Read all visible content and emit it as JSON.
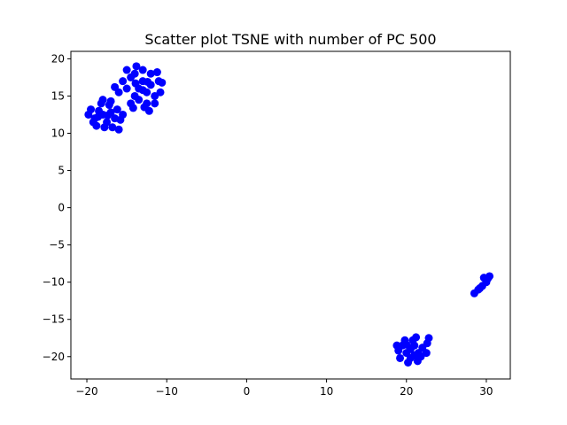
{
  "chart_data": {
    "type": "scatter",
    "title": "Scatter plot TSNE with  number of PC 500",
    "xlabel": "",
    "ylabel": "",
    "xlim": [
      -22,
      33
    ],
    "ylim": [
      -23,
      21
    ],
    "xticks": [
      -20,
      -10,
      0,
      10,
      20,
      30
    ],
    "yticks": [
      -20,
      -15,
      -10,
      -5,
      0,
      5,
      10,
      15,
      20
    ],
    "xtick_labels": [
      "−20",
      "−10",
      "0",
      "10",
      "20",
      "30"
    ],
    "ytick_labels": [
      "−20",
      "−15",
      "−10",
      "−5",
      "0",
      "5",
      "10",
      "15",
      "20"
    ],
    "grid": false,
    "marker_color": "#0000ff",
    "points": [
      {
        "x": -13.5,
        "y": 16.0
      },
      {
        "x": -13.0,
        "y": 17.0
      },
      {
        "x": -12.5,
        "y": 15.5
      },
      {
        "x": -14.0,
        "y": 15.0
      },
      {
        "x": -12.0,
        "y": 16.5
      },
      {
        "x": -14.5,
        "y": 17.5
      },
      {
        "x": -13.0,
        "y": 18.5
      },
      {
        "x": -11.5,
        "y": 15.0
      },
      {
        "x": -12.5,
        "y": 14.0
      },
      {
        "x": -15.0,
        "y": 16.0
      },
      {
        "x": -11.0,
        "y": 17.0
      },
      {
        "x": -14.0,
        "y": 18.0
      },
      {
        "x": -12.0,
        "y": 18.0
      },
      {
        "x": -13.5,
        "y": 14.5
      },
      {
        "x": -15.5,
        "y": 17.0
      },
      {
        "x": -10.8,
        "y": 15.5
      },
      {
        "x": -12.8,
        "y": 13.5
      },
      {
        "x": -14.5,
        "y": 14.0
      },
      {
        "x": -16.0,
        "y": 15.5
      },
      {
        "x": -11.2,
        "y": 18.2
      },
      {
        "x": -13.8,
        "y": 19.0
      },
      {
        "x": -15.0,
        "y": 18.5
      },
      {
        "x": -11.5,
        "y": 14.0
      },
      {
        "x": -16.5,
        "y": 16.2
      },
      {
        "x": -10.6,
        "y": 16.8
      },
      {
        "x": -12.2,
        "y": 13.0
      },
      {
        "x": -14.2,
        "y": 13.4
      },
      {
        "x": -13.0,
        "y": 15.8
      },
      {
        "x": -12.4,
        "y": 16.9
      },
      {
        "x": -13.9,
        "y": 16.7
      },
      {
        "x": -18.0,
        "y": 12.5
      },
      {
        "x": -17.5,
        "y": 11.5
      },
      {
        "x": -18.5,
        "y": 13.0
      },
      {
        "x": -17.0,
        "y": 12.8
      },
      {
        "x": -19.0,
        "y": 12.0
      },
      {
        "x": -18.2,
        "y": 14.0
      },
      {
        "x": -17.2,
        "y": 13.8
      },
      {
        "x": -19.5,
        "y": 13.2
      },
      {
        "x": -16.5,
        "y": 12.0
      },
      {
        "x": -18.8,
        "y": 11.0
      },
      {
        "x": -17.8,
        "y": 10.8
      },
      {
        "x": -19.8,
        "y": 12.5
      },
      {
        "x": -16.2,
        "y": 13.2
      },
      {
        "x": -18.0,
        "y": 14.5
      },
      {
        "x": -17.0,
        "y": 14.3
      },
      {
        "x": -16.8,
        "y": 10.8
      },
      {
        "x": -15.5,
        "y": 12.5
      },
      {
        "x": -18.6,
        "y": 12.2
      },
      {
        "x": -17.4,
        "y": 12.4
      },
      {
        "x": -15.8,
        "y": 11.8
      },
      {
        "x": -19.2,
        "y": 11.5
      },
      {
        "x": -16.0,
        "y": 10.5
      },
      {
        "x": 20.5,
        "y": -19.0
      },
      {
        "x": 21.0,
        "y": -18.5
      },
      {
        "x": 20.0,
        "y": -19.5
      },
      {
        "x": 19.5,
        "y": -18.5
      },
      {
        "x": 21.5,
        "y": -19.5
      },
      {
        "x": 20.5,
        "y": -20.2
      },
      {
        "x": 19.0,
        "y": -19.2
      },
      {
        "x": 22.0,
        "y": -18.8
      },
      {
        "x": 20.8,
        "y": -17.8
      },
      {
        "x": 19.8,
        "y": -17.8
      },
      {
        "x": 21.8,
        "y": -20.0
      },
      {
        "x": 20.2,
        "y": -20.8
      },
      {
        "x": 19.2,
        "y": -20.2
      },
      {
        "x": 22.5,
        "y": -19.5
      },
      {
        "x": 21.2,
        "y": -17.4
      },
      {
        "x": 18.8,
        "y": -18.5
      },
      {
        "x": 22.6,
        "y": -18.2
      },
      {
        "x": 20.6,
        "y": -18.8
      },
      {
        "x": 21.4,
        "y": -20.6
      },
      {
        "x": 22.8,
        "y": -17.5
      },
      {
        "x": 20.0,
        "y": -18.4
      },
      {
        "x": 21.0,
        "y": -19.8
      },
      {
        "x": 28.5,
        "y": -11.5
      },
      {
        "x": 29.0,
        "y": -11.0
      },
      {
        "x": 29.5,
        "y": -10.5
      },
      {
        "x": 30.0,
        "y": -10.0
      },
      {
        "x": 30.2,
        "y": -9.5
      },
      {
        "x": 29.7,
        "y": -9.4
      },
      {
        "x": 30.4,
        "y": -9.2
      },
      {
        "x": 29.2,
        "y": -10.8
      }
    ]
  }
}
